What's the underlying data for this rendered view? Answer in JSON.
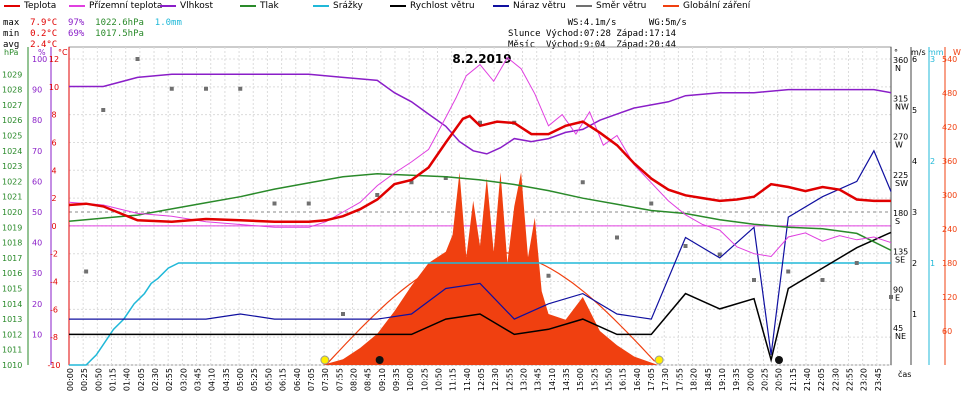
{
  "legend": [
    {
      "label": "Teplota",
      "color": "#e00000"
    },
    {
      "label": "Přízemní teplota",
      "color": "#e040e0"
    },
    {
      "label": "Vlhkost",
      "color": "#8a1ec8"
    },
    {
      "label": "Tlak",
      "color": "#2a8a2a"
    },
    {
      "label": "Srážky",
      "color": "#20b8d8"
    },
    {
      "label": "Rychlost větru",
      "color": "#000000"
    },
    {
      "label": "Náraz větru",
      "color": "#1010a0"
    },
    {
      "label": "Směr větru",
      "color": "#707070"
    },
    {
      "label": "Globální záření",
      "color": "#f04010"
    }
  ],
  "stats": {
    "max": {
      "label": "max",
      "temp": "7.9°C",
      "hum": "97%",
      "press": "1022.6hPa",
      "rain": "1.0mm"
    },
    "min": {
      "label": "min",
      "temp": "0.2°C",
      "hum": "69%",
      "press": "1017.5hPa"
    },
    "avg": {
      "label": "avg",
      "temp": "2.4°C"
    }
  },
  "astro": {
    "ws": "WS:4.1m/s",
    "wg": "WG:5m/s",
    "sun_label": "Slunce",
    "sun_rise": "Východ:07:28",
    "sun_set": "Západ:17:14",
    "moon_label": "Měsíc",
    "moon_rise": "Východ:9:04",
    "moon_set": "Západ:20:44"
  },
  "chart_data": {
    "type": "line",
    "title": "8.2.2019",
    "xlabel": "čas",
    "axes": {
      "hPa": {
        "unit": "hPa",
        "range": [
          1010,
          1030
        ],
        "color": "#2a8a2a"
      },
      "pct": {
        "unit": "%",
        "range": [
          0,
          100
        ],
        "color": "#8a1ec8"
      },
      "temp": {
        "unit": "°C",
        "range": [
          -10,
          12
        ],
        "color": "#e00000"
      },
      "dir": {
        "unit": "°",
        "range": [
          0,
          360
        ]
      },
      "wind": {
        "unit": "m/s",
        "range": [
          0,
          6
        ]
      },
      "rain": {
        "unit": "mm",
        "range": [
          0,
          3
        ],
        "color": "#20b8d8"
      },
      "rad": {
        "unit": "W",
        "range": [
          0,
          540
        ],
        "color": "#f04010"
      }
    },
    "hpa_ticks": [
      "1010",
      "1011",
      "1012",
      "1013",
      "1014",
      "1015",
      "1016",
      "1017",
      "1018",
      "1019",
      "1020",
      "1021",
      "1022",
      "1023",
      "1024",
      "1025",
      "1026",
      "1027",
      "1028",
      "1029"
    ],
    "pct_ticks": [
      "10",
      "20",
      "30",
      "40",
      "50",
      "60",
      "70",
      "80",
      "90",
      "100"
    ],
    "temp_ticks": [
      "-10",
      "-8",
      "-6",
      "-4",
      "-2",
      "0",
      "2",
      "4",
      "6",
      "8",
      "10",
      "12"
    ],
    "dir_ticks": [
      {
        "deg": "360",
        "dir": "N"
      },
      {
        "deg": "315",
        "dir": "NW"
      },
      {
        "deg": "270",
        "dir": "W"
      },
      {
        "deg": "225",
        "dir": "SW"
      },
      {
        "deg": "180",
        "dir": "S"
      },
      {
        "deg": "135",
        "dir": "SE"
      },
      {
        "deg": "90",
        "dir": "E"
      },
      {
        "deg": "45",
        "dir": "NE"
      }
    ],
    "wind_ticks": [
      "1",
      "2",
      "3",
      "4",
      "5",
      "6"
    ],
    "rain_ticks": [
      "1",
      "2",
      "3"
    ],
    "rad_ticks": [
      "60",
      "120",
      "180",
      "240",
      "300",
      "360",
      "420",
      "480",
      "540"
    ],
    "x_ticks": [
      "00:00",
      "00:25",
      "00:50",
      "01:15",
      "01:40",
      "02:05",
      "02:30",
      "02:55",
      "03:20",
      "03:45",
      "04:10",
      "04:35",
      "05:00",
      "05:25",
      "05:50",
      "06:15",
      "06:40",
      "07:05",
      "07:30",
      "07:55",
      "08:20",
      "08:45",
      "09:10",
      "09:35",
      "10:00",
      "10:25",
      "10:50",
      "11:15",
      "11:40",
      "12:05",
      "12:30",
      "12:55",
      "13:20",
      "13:45",
      "14:10",
      "14:35",
      "15:00",
      "15:25",
      "15:50",
      "16:15",
      "16:40",
      "17:05",
      "17:30",
      "17:55",
      "18:20",
      "18:45",
      "19:10",
      "19:35",
      "20:00",
      "20:25",
      "20:50",
      "21:15",
      "21:40",
      "22:05",
      "22:30",
      "22:55",
      "23:20",
      "23:45"
    ],
    "series": [
      {
        "name": "Teplota",
        "unit": "°C",
        "color": "#e00000",
        "x": [
          0,
          0.5,
          1,
          2,
          3,
          4,
          5,
          6,
          7,
          7.5,
          8,
          8.5,
          9,
          9.5,
          10,
          10.5,
          11,
          11.5,
          11.7,
          12,
          12.5,
          13,
          13.5,
          14,
          14.5,
          15,
          15.5,
          16,
          16.5,
          17,
          17.5,
          18,
          18.5,
          19,
          19.5,
          20,
          20.5,
          21,
          21.5,
          22,
          22.5,
          23,
          23.5,
          24
        ],
        "y": [
          1.5,
          1.6,
          1.4,
          0.4,
          0.3,
          0.5,
          0.4,
          0.3,
          0.3,
          0.4,
          0.7,
          1.2,
          1.9,
          3.0,
          3.3,
          4.2,
          6.0,
          7.7,
          7.9,
          7.2,
          7.5,
          7.4,
          6.6,
          6.6,
          7.2,
          7.5,
          6.7,
          5.8,
          4.5,
          3.4,
          2.6,
          2.2,
          2.0,
          1.8,
          1.9,
          2.1,
          3.0,
          2.8,
          2.5,
          2.8,
          2.6,
          1.9,
          1.8,
          1.8
        ]
      },
      {
        "name": "Přízemní teplota",
        "unit": "°C",
        "color": "#e040e0",
        "x": [
          0,
          1,
          2,
          3,
          4,
          5,
          6,
          7,
          7.5,
          8,
          8.5,
          9,
          9.5,
          10,
          10.5,
          11,
          11.3,
          11.6,
          12,
          12.4,
          12.8,
          13.2,
          13.6,
          14,
          14.4,
          14.8,
          15.2,
          15.6,
          16,
          16.5,
          17,
          17.5,
          18,
          18.5,
          19,
          19.5,
          20,
          20.5,
          21,
          21.5,
          22,
          22.5,
          23,
          23.5,
          24
        ],
        "y": [
          1.7,
          1.5,
          0.9,
          0.7,
          0.3,
          0.1,
          -0.1,
          -0.1,
          0.3,
          1.0,
          1.7,
          2.9,
          3.8,
          4.6,
          5.5,
          7.8,
          9.2,
          10.8,
          11.6,
          10.4,
          12.1,
          11.3,
          9.5,
          7.2,
          8.0,
          6.6,
          8.2,
          5.8,
          6.5,
          4.4,
          3.1,
          1.8,
          0.8,
          0.1,
          -0.3,
          -1.5,
          -2.0,
          -2.2,
          -0.8,
          -0.5,
          -1.1,
          -0.7,
          -1.0,
          -0.8,
          -1.2
        ]
      },
      {
        "name": "Vlhkost",
        "unit": "%",
        "color": "#8a1ec8",
        "x": [
          0,
          1,
          2,
          3,
          4,
          5,
          6,
          7,
          8,
          9,
          9.5,
          10,
          10.5,
          11,
          11.4,
          11.8,
          12.2,
          12.6,
          13,
          13.5,
          14,
          14.5,
          15,
          15.5,
          16,
          16.5,
          17,
          17.5,
          18,
          19,
          20,
          21,
          22,
          23,
          23.5,
          24
        ],
        "y": [
          91,
          91,
          94,
          95,
          95,
          95,
          95,
          95,
          94,
          93,
          89,
          86,
          82,
          78,
          73,
          70,
          69,
          71,
          74,
          73,
          74,
          76,
          77,
          80,
          82,
          84,
          85,
          86,
          88,
          89,
          89,
          90,
          90,
          90,
          90,
          89
        ]
      },
      {
        "name": "Tlak",
        "unit": "hPa",
        "color": "#2a8a2a",
        "x": [
          0,
          1,
          2,
          3,
          4,
          5,
          6,
          7,
          8,
          9,
          10,
          11,
          12,
          13,
          14,
          15,
          16,
          17,
          18,
          19,
          20,
          21,
          22,
          23,
          24
        ],
        "y": [
          1019.4,
          1019.6,
          1019.8,
          1020.2,
          1020.6,
          1021.0,
          1021.5,
          1021.9,
          1022.3,
          1022.5,
          1022.4,
          1022.3,
          1022.1,
          1021.8,
          1021.4,
          1020.9,
          1020.5,
          1020.1,
          1019.9,
          1019.5,
          1019.2,
          1019.0,
          1018.9,
          1018.6,
          1017.5
        ]
      },
      {
        "name": "Srážky",
        "unit": "mm",
        "color": "#20b8d8",
        "x": [
          0,
          0.5,
          0.8,
          1.0,
          1.3,
          1.6,
          1.9,
          2.2,
          2.4,
          2.6,
          2.9,
          3.2,
          3.6,
          24
        ],
        "y": [
          0,
          0,
          0.1,
          0.2,
          0.35,
          0.45,
          0.6,
          0.7,
          0.8,
          0.85,
          0.95,
          1.0,
          1.0,
          1.0
        ]
      },
      {
        "name": "Globální záření",
        "unit": "W",
        "color": "#f04010",
        "x": [
          7.4,
          8,
          8.5,
          9,
          9.5,
          10,
          10.5,
          11,
          11.2,
          11.4,
          11.6,
          11.8,
          12,
          12.2,
          12.4,
          12.6,
          12.8,
          13,
          13.2,
          13.4,
          13.6,
          13.8,
          14,
          14.5,
          15,
          15.5,
          16,
          16.5,
          17.2
        ],
        "y": [
          0,
          10,
          30,
          55,
          95,
          140,
          180,
          200,
          230,
          340,
          190,
          290,
          210,
          330,
          200,
          340,
          180,
          280,
          340,
          190,
          260,
          130,
          90,
          80,
          120,
          60,
          35,
          15,
          0
        ]
      },
      {
        "name": "Rychlost větru",
        "unit": "m/s",
        "color": "#000000",
        "x": [
          0,
          1,
          2,
          3,
          4,
          5,
          6,
          7,
          8,
          9,
          10,
          11,
          12,
          13,
          14,
          15,
          16,
          17,
          18,
          19,
          20,
          20.5,
          21,
          22,
          23,
          24
        ],
        "y": [
          0.6,
          0.6,
          0.6,
          0.6,
          0.6,
          0.6,
          0.6,
          0.6,
          0.6,
          0.6,
          0.6,
          0.9,
          1.0,
          0.6,
          0.7,
          0.9,
          0.6,
          0.6,
          1.4,
          1.1,
          1.3,
          0.1,
          1.5,
          1.9,
          2.3,
          2.6
        ]
      },
      {
        "name": "Náraz větru",
        "unit": "m/s",
        "color": "#1010a0",
        "x": [
          0,
          1,
          2,
          3,
          4,
          5,
          6,
          7,
          8,
          9,
          10,
          11,
          12,
          13,
          14,
          15,
          16,
          17,
          18,
          19,
          20,
          20.5,
          21,
          22,
          23,
          23.5,
          24
        ],
        "y": [
          0.9,
          0.9,
          0.9,
          0.9,
          0.9,
          1.0,
          0.9,
          0.9,
          0.9,
          0.9,
          1.0,
          1.5,
          1.6,
          0.9,
          1.2,
          1.4,
          1.0,
          0.9,
          2.5,
          2.1,
          2.7,
          0.2,
          2.9,
          3.3,
          3.6,
          4.2,
          3.4
        ]
      },
      {
        "name": "Směr větru",
        "unit": "°",
        "color": "#707070",
        "x": [
          0.5,
          1,
          2,
          3,
          4,
          5,
          6,
          7,
          8,
          9,
          10,
          11,
          12,
          13,
          14,
          15,
          16,
          17,
          18,
          19,
          20,
          21,
          22,
          23,
          24
        ],
        "y": [
          110,
          300,
          360,
          325,
          325,
          325,
          190,
          190,
          60,
          200,
          215,
          220,
          285,
          285,
          105,
          215,
          150,
          190,
          140,
          130,
          100,
          110,
          100,
          120,
          80
        ]
      }
    ]
  }
}
